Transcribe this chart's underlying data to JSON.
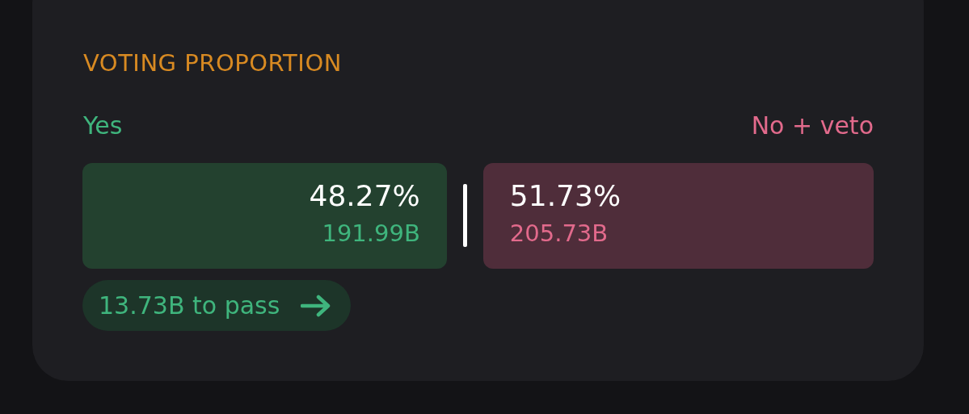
{
  "chart_data": {
    "type": "other",
    "title": "VOTING PROPORTION",
    "categories": [
      "Yes",
      "No + veto"
    ],
    "series": [
      {
        "colors": [
          "#23412f",
          "#4f2d3a"
        ],
        "values": [
          48.27,
          51.73
        ],
        "value_labels": [
          "48.27%",
          "51.73%"
        ]
      },
      {
        "values": [
          191.99,
          205.73
        ],
        "value_labels": [
          "191.99B",
          "205.73B"
        ]
      }
    ],
    "annotations": [
      "13.73B to pass"
    ]
  }
}
